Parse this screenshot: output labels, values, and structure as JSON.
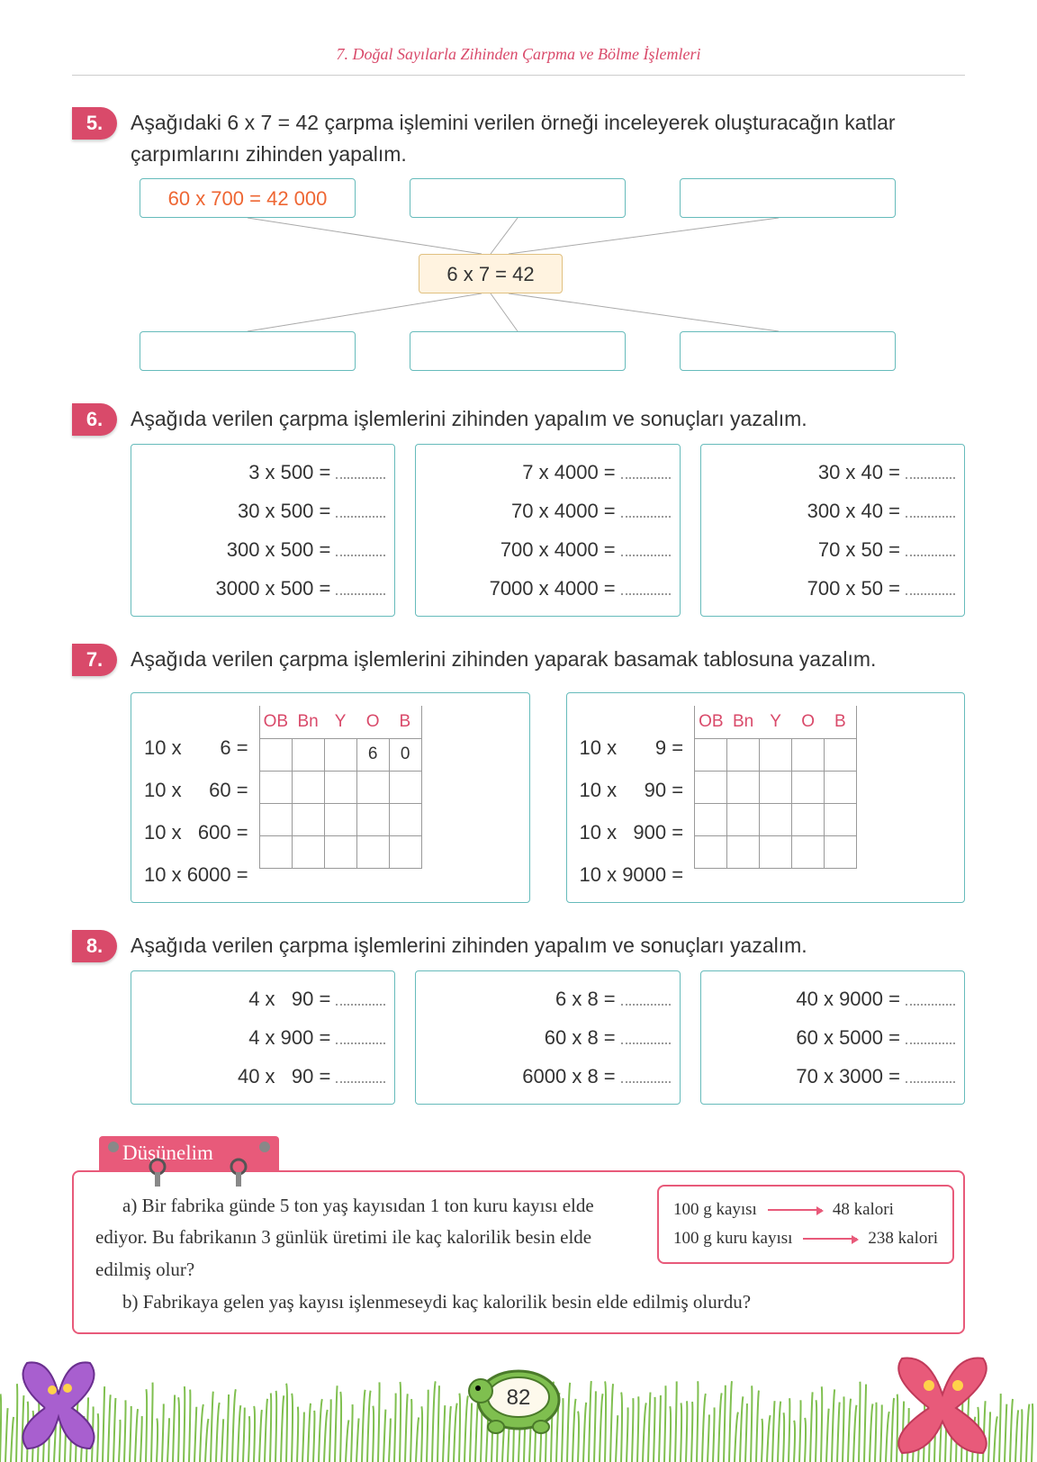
{
  "header": "7.  Doğal Sayılarla Zihinden Çarpma ve Bölme İşlemleri",
  "q5": {
    "num": "5.",
    "text": "Aşağıdaki 6 x 7 = 42 çarpma işlemini verilen örneği inceleyerek oluşturacağın katlar çarpımlarını zihinden yapalım.",
    "topA": "60 x 700 = 42 000",
    "mid": "6 x 7 = 42",
    "colors": {
      "box_border": "#6bb",
      "example_text": "#e63",
      "mid_bg": "#fff3e0"
    }
  },
  "q6": {
    "num": "6.",
    "text": "Aşağıda verilen çarpma işlemlerini zihinden yapalım ve sonuçları yazalım.",
    "cols": [
      [
        "  3 x 500 =",
        " 30 x 500 =",
        " 300 x 500 =",
        "3000 x 500 ="
      ],
      [
        "  7 x 4000 =",
        " 70 x 4000 =",
        " 700 x 4000 =",
        "7000 x 4000 ="
      ],
      [
        " 30 x 40 =",
        "300 x 40 =",
        " 70 x 50 =",
        "700 x 50 ="
      ]
    ]
  },
  "q7": {
    "num": "7.",
    "text": "Aşağıda verilen çarpma işlemlerini zihinden yaparak basamak tablosuna yazalım.",
    "headers": [
      "OB",
      "Bn",
      "Y",
      "O",
      "B"
    ],
    "left": {
      "rows": [
        "10 x       6 =",
        "10 x     60 =",
        "10 x   600 =",
        "10 x 6000 ="
      ],
      "prefill": {
        "r": 0,
        "c": 3,
        "v": "6",
        "c2": 4,
        "v2": "0"
      }
    },
    "right": {
      "rows": [
        "10 x       9 =",
        "10 x     90 =",
        "10 x   900 =",
        "10 x 9000 ="
      ]
    }
  },
  "q8": {
    "num": "8.",
    "text": "Aşağıda verilen çarpma işlemlerini zihinden yapalım ve sonuçları yazalım.",
    "cols": [
      [
        " 4 x   90 =",
        " 4 x 900 =",
        "40 x   90 ="
      ],
      [
        "   6 x 8 =",
        "  60 x 8 =",
        "6000 x 8 ="
      ],
      [
        "40 x 9000 =",
        "60 x 5000 =",
        "70 x 3000 ="
      ]
    ]
  },
  "think": {
    "tab": "Düşünelim",
    "p1": "a) Bir fabrika günde 5 ton yaş kayısıdan 1 ton kuru kayısı elde ediyor. Bu fabrikanın 3 günlük üretimi ile kaç kalorilik besin elde edilmiş olur?",
    "p2": "b) Fabrikaya gelen yaş kayısı işlenmeseydi kaç kalorilik besin elde edilmiş olurdu?",
    "box": {
      "l1a": "100 g kayısı",
      "l1b": "48 kalori",
      "l2a": "100 g kuru kayısı",
      "l2b": "238 kalori"
    }
  },
  "pagenum": "82",
  "palette": {
    "accent_pink": "#d94a6a",
    "accent_pink_bright": "#e85a7a",
    "teal": "#6bb",
    "turtle": "#7fbf4f"
  }
}
